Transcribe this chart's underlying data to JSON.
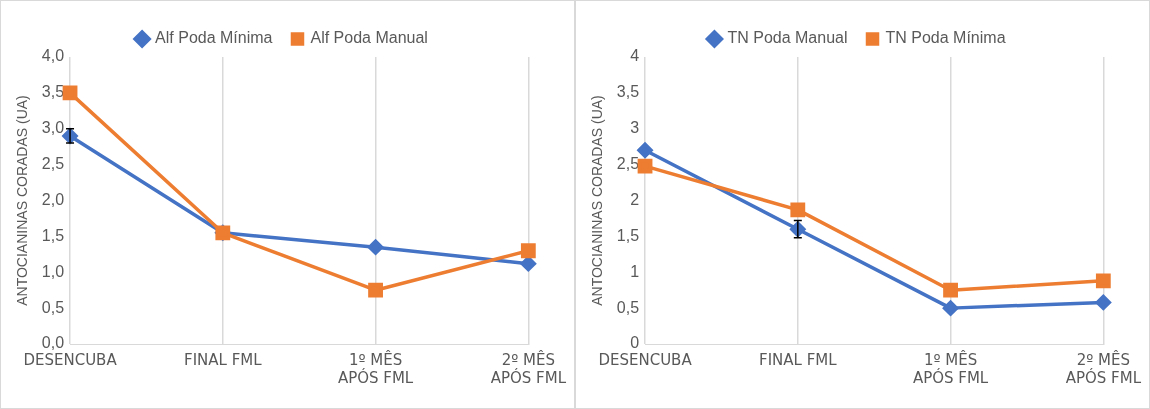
{
  "chart_data": [
    {
      "type": "line",
      "categories": [
        "DESENCUBA",
        "FINAL FML",
        "1º MÊS APÓS FML",
        "2º MÊS APÓS FML"
      ],
      "ylabel": "ANTOCIANINAS CORADAS (UA)",
      "ylim": [
        0,
        4
      ],
      "yticks": [
        {
          "value": 0,
          "label": "0,0"
        },
        {
          "value": 0.5,
          "label": "0,5"
        },
        {
          "value": 1,
          "label": "1,0"
        },
        {
          "value": 1.5,
          "label": "1,5"
        },
        {
          "value": 2,
          "label": "2,0"
        },
        {
          "value": 2.5,
          "label": "2,5"
        },
        {
          "value": 3,
          "label": "3,0"
        },
        {
          "value": 3.5,
          "label": "3,5"
        },
        {
          "value": 4,
          "label": "4,0"
        }
      ],
      "grid": "x",
      "legend": "top",
      "series": [
        {
          "name": "Alf Poda Mínima",
          "color": "#4472c4",
          "marker": "diamond",
          "values": [
            2.9,
            1.55,
            1.35,
            1.12
          ],
          "errors": [
            0.1,
            null,
            null,
            null
          ]
        },
        {
          "name": "Alf Poda Manual",
          "color": "#ed7d31",
          "marker": "square",
          "values": [
            3.5,
            1.55,
            0.75,
            1.3
          ]
        }
      ]
    },
    {
      "type": "line",
      "categories": [
        "DESENCUBA",
        "FINAL FML",
        "1º MÊS APÓS FML",
        "2º MÊS APÓS FML"
      ],
      "ylabel": "ANTOCIANINAS CORADAS (UA)",
      "ylim": [
        0,
        4
      ],
      "yticks": [
        0,
        {
          "value": 0.5,
          "label": "0,5"
        },
        1,
        {
          "value": 1.5,
          "label": "1,5"
        },
        2,
        {
          "value": 2.5,
          "label": "2,5"
        },
        3,
        {
          "value": 3.5,
          "label": "3,5"
        },
        4
      ],
      "grid": "x",
      "legend": "top",
      "series": [
        {
          "name": "TN Poda Manual",
          "color": "#4472c4",
          "marker": "diamond",
          "values": [
            2.7,
            1.6,
            0.5,
            0.58
          ],
          "errors": [
            null,
            0.12,
            null,
            null
          ]
        },
        {
          "name": "TN Poda Mínima",
          "color": "#ed7d31",
          "marker": "square",
          "values": [
            2.48,
            1.87,
            0.75,
            0.88
          ]
        }
      ]
    }
  ]
}
